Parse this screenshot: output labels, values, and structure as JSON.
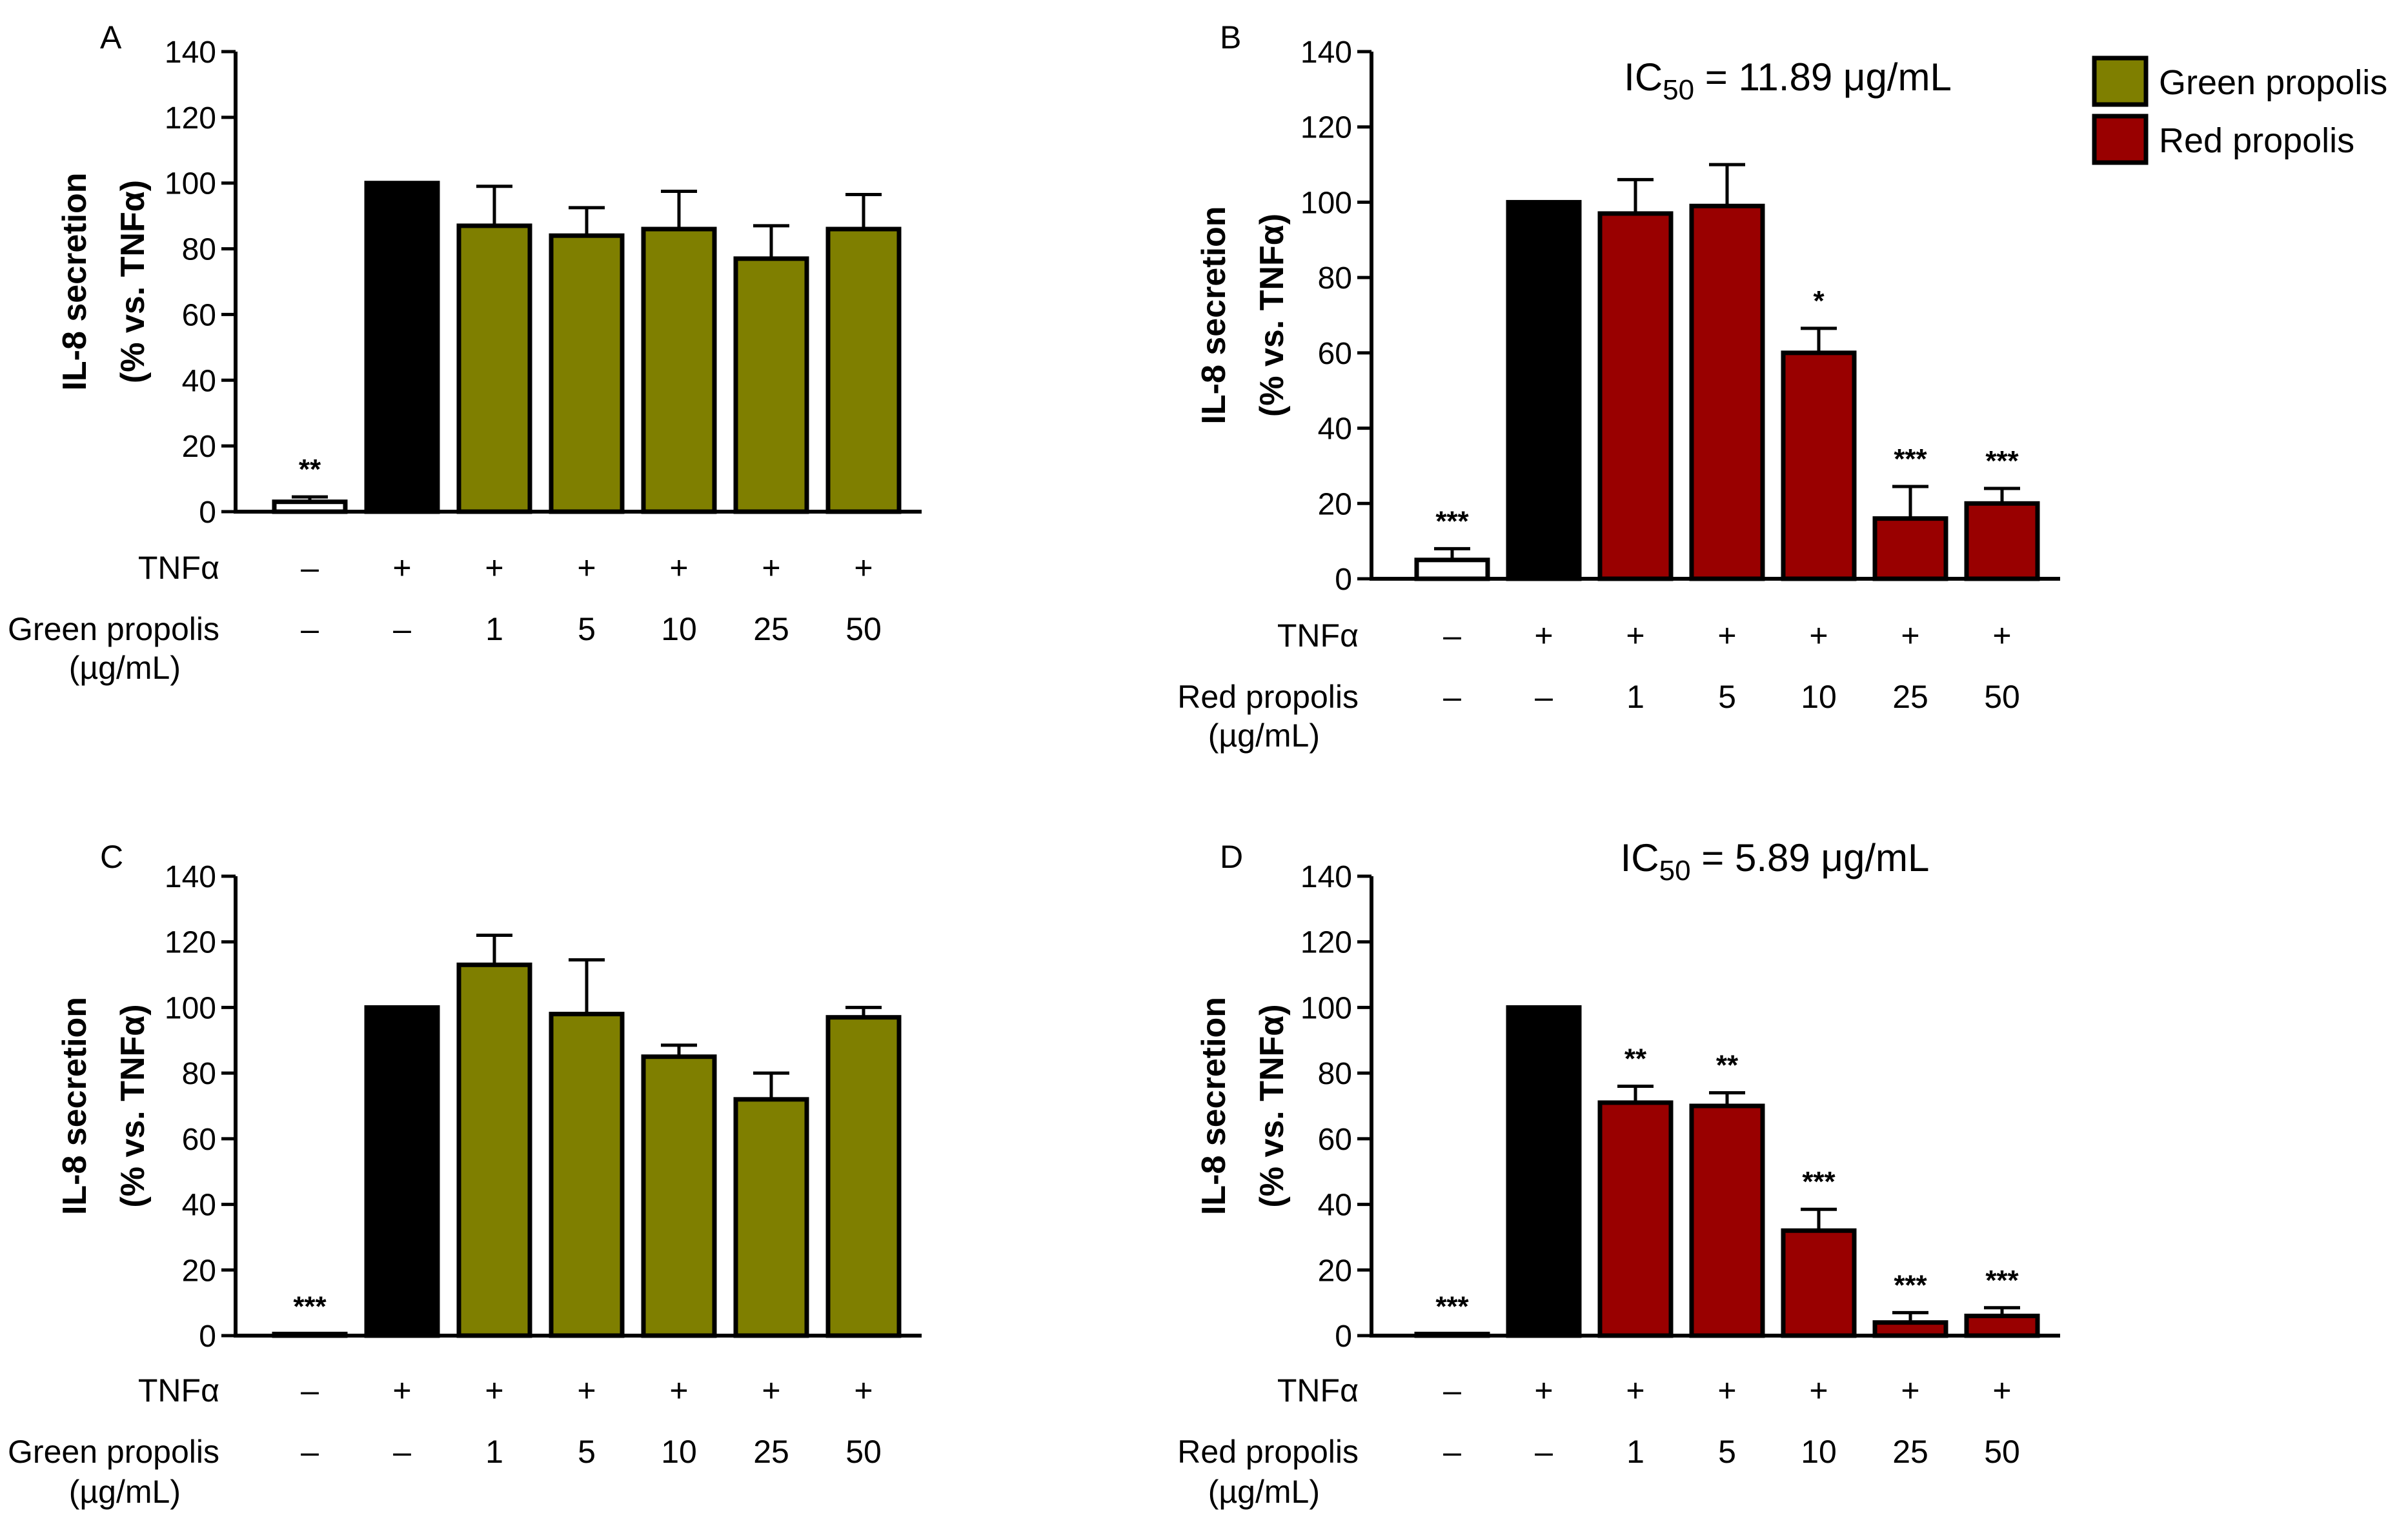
{
  "colors": {
    "green_propolis": "#7f7f00",
    "red_propolis": "#990000",
    "tnf_control": "#000000",
    "untreated": "#ffffff",
    "outline": "#000000"
  },
  "legend": {
    "entries": [
      {
        "label": "Green propolis",
        "color": "#7f7f00"
      },
      {
        "label": "Red propolis",
        "color": "#990000"
      }
    ]
  },
  "chart_data": [
    {
      "panel": "A",
      "type": "bar",
      "ylabel_line1": "IL-8 secretion",
      "ylabel_line2": "(% vs. TNFα)",
      "ylim": [
        0,
        140
      ],
      "yticks": [
        0,
        20,
        40,
        60,
        80,
        100,
        120,
        140
      ],
      "ic50": "",
      "rows": [
        {
          "label": "TNFα",
          "signs": [
            "–",
            "+",
            "+",
            "+",
            "+",
            "+",
            "+"
          ]
        },
        {
          "label": "Green propolis",
          "sublabel": "(µg/mL)",
          "signs": [
            "–",
            "–",
            "1",
            "5",
            "10",
            "25",
            "50"
          ]
        }
      ],
      "bars": [
        {
          "value": 3,
          "error": 1.5,
          "sig": "**",
          "fill": "untreated"
        },
        {
          "value": 100,
          "error": 0,
          "sig": "",
          "fill": "tnf_control"
        },
        {
          "value": 87,
          "error": 12,
          "sig": "",
          "fill": "green_propolis"
        },
        {
          "value": 84,
          "error": 8.5,
          "sig": "",
          "fill": "green_propolis"
        },
        {
          "value": 86,
          "error": 11.5,
          "sig": "",
          "fill": "green_propolis"
        },
        {
          "value": 77,
          "error": 10,
          "sig": "",
          "fill": "green_propolis"
        },
        {
          "value": 86,
          "error": 10.5,
          "sig": "",
          "fill": "green_propolis"
        }
      ]
    },
    {
      "panel": "B",
      "type": "bar",
      "ylabel_line1": "IL-8 secretion",
      "ylabel_line2": "(% vs. TNFα)",
      "ylim": [
        0,
        140
      ],
      "yticks": [
        0,
        20,
        40,
        60,
        80,
        100,
        120,
        140
      ],
      "ic50": "11.89 μg/mL",
      "rows": [
        {
          "label": "TNFα",
          "signs": [
            "–",
            "+",
            "+",
            "+",
            "+",
            "+",
            "+"
          ]
        },
        {
          "label": "Red propolis",
          "sublabel": "(µg/mL)",
          "signs": [
            "–",
            "–",
            "1",
            "5",
            "10",
            "25",
            "50"
          ]
        }
      ],
      "bars": [
        {
          "value": 5,
          "error": 3,
          "sig": "***",
          "fill": "untreated"
        },
        {
          "value": 100,
          "error": 0,
          "sig": "",
          "fill": "tnf_control"
        },
        {
          "value": 97,
          "error": 9,
          "sig": "",
          "fill": "red_propolis"
        },
        {
          "value": 99,
          "error": 11,
          "sig": "",
          "fill": "red_propolis"
        },
        {
          "value": 60,
          "error": 6.5,
          "sig": "*",
          "fill": "red_propolis"
        },
        {
          "value": 16,
          "error": 8.5,
          "sig": "***",
          "fill": "red_propolis"
        },
        {
          "value": 20,
          "error": 4,
          "sig": "***",
          "fill": "red_propolis"
        }
      ]
    },
    {
      "panel": "C",
      "type": "bar",
      "ylabel_line1": "IL-8 secretion",
      "ylabel_line2": "(% vs. TNFα)",
      "ylim": [
        0,
        140
      ],
      "yticks": [
        0,
        20,
        40,
        60,
        80,
        100,
        120,
        140
      ],
      "ic50": "",
      "rows": [
        {
          "label": "TNFα",
          "signs": [
            "–",
            "+",
            "+",
            "+",
            "+",
            "+",
            "+"
          ]
        },
        {
          "label": "Green propolis",
          "sublabel": "(µg/mL)",
          "signs": [
            "–",
            "–",
            "1",
            "5",
            "10",
            "25",
            "50"
          ]
        }
      ],
      "bars": [
        {
          "value": 0.5,
          "error": 0,
          "sig": "***",
          "fill": "untreated"
        },
        {
          "value": 100,
          "error": 0,
          "sig": "",
          "fill": "tnf_control"
        },
        {
          "value": 113,
          "error": 9,
          "sig": "",
          "fill": "green_propolis"
        },
        {
          "value": 98,
          "error": 16.5,
          "sig": "",
          "fill": "green_propolis"
        },
        {
          "value": 85,
          "error": 3.5,
          "sig": "",
          "fill": "green_propolis"
        },
        {
          "value": 72,
          "error": 8,
          "sig": "",
          "fill": "green_propolis"
        },
        {
          "value": 97,
          "error": 3,
          "sig": "",
          "fill": "green_propolis"
        }
      ]
    },
    {
      "panel": "D",
      "type": "bar",
      "ylabel_line1": "IL-8 secretion",
      "ylabel_line2": "(% vs. TNFα)",
      "ylim": [
        0,
        140
      ],
      "yticks": [
        0,
        20,
        40,
        60,
        80,
        100,
        120,
        140
      ],
      "ic50": "5.89 μg/mL",
      "rows": [
        {
          "label": "TNFα",
          "signs": [
            "–",
            "+",
            "+",
            "+",
            "+",
            "+",
            "+"
          ]
        },
        {
          "label": "Red propolis",
          "sublabel": "(µg/mL)",
          "signs": [
            "–",
            "–",
            "1",
            "5",
            "10",
            "25",
            "50"
          ]
        }
      ],
      "bars": [
        {
          "value": 0.5,
          "error": 0,
          "sig": "***",
          "fill": "untreated"
        },
        {
          "value": 100,
          "error": 0,
          "sig": "",
          "fill": "tnf_control"
        },
        {
          "value": 71,
          "error": 5,
          "sig": "**",
          "fill": "red_propolis"
        },
        {
          "value": 70,
          "error": 4,
          "sig": "**",
          "fill": "red_propolis"
        },
        {
          "value": 32,
          "error": 6.5,
          "sig": "***",
          "fill": "red_propolis"
        },
        {
          "value": 4,
          "error": 3,
          "sig": "***",
          "fill": "red_propolis"
        },
        {
          "value": 6,
          "error": 2.5,
          "sig": "***",
          "fill": "red_propolis"
        }
      ]
    }
  ]
}
